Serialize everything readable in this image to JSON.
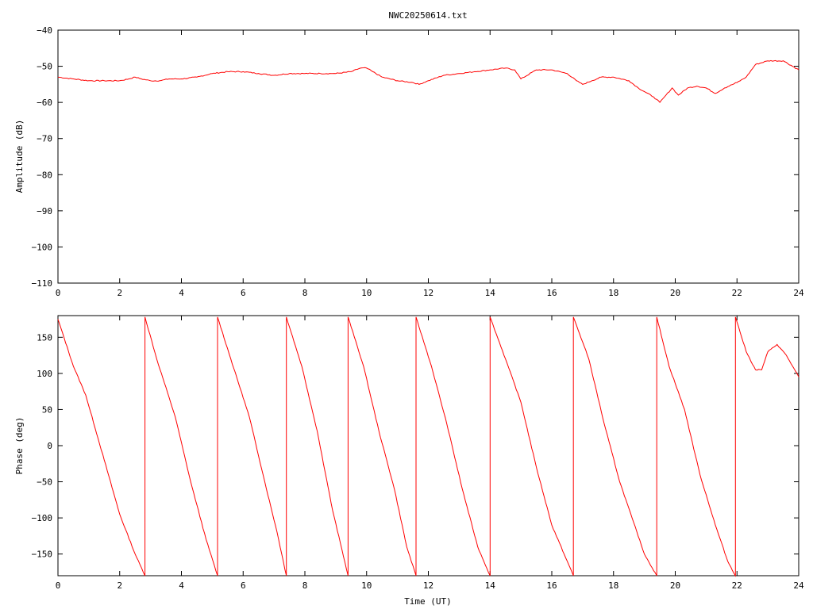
{
  "title": "NWC20250614.txt",
  "colors": {
    "trace": "#ff0000",
    "axis": "#000000",
    "background": "#ffffff"
  },
  "chart_data": [
    {
      "type": "line",
      "title": "NWC20250614.txt",
      "xlabel": "",
      "ylabel": "Amplitude (dB)",
      "xlim": [
        0,
        24
      ],
      "ylim": [
        -110,
        -40
      ],
      "xticks": [
        0,
        2,
        4,
        6,
        8,
        10,
        12,
        14,
        16,
        18,
        20,
        22,
        24
      ],
      "yticks": [
        -40,
        -50,
        -60,
        -70,
        -80,
        -90,
        -100,
        -110
      ],
      "grid": false,
      "series": [
        {
          "color": "#ff0000",
          "x": [
            0,
            0.5,
            1,
            1.5,
            2,
            2.3,
            2.5,
            2.7,
            3,
            3.3,
            3.6,
            4,
            4.5,
            5,
            5.5,
            6,
            6.5,
            7,
            7.5,
            8,
            8.5,
            9,
            9.5,
            9.8,
            10,
            10.2,
            10.5,
            11,
            11.5,
            11.7,
            12,
            12.5,
            13,
            13.5,
            14,
            14.5,
            14.8,
            15,
            15.5,
            16,
            16.5,
            16.8,
            17,
            17.3,
            17.6,
            18,
            18.5,
            18.8,
            19,
            19.3,
            19.5,
            19.7,
            19.9,
            20.1,
            20.4,
            20.7,
            21,
            21.3,
            21.6,
            22,
            22.3,
            22.6,
            23,
            23.5,
            24
          ],
          "y": [
            -53,
            -53.5,
            -54,
            -54,
            -54,
            -53.5,
            -53,
            -53.5,
            -54,
            -54,
            -53.5,
            -53.5,
            -53,
            -52,
            -51.5,
            -51.5,
            -52,
            -52.5,
            -52,
            -52,
            -52,
            -52,
            -51.5,
            -50.5,
            -50.5,
            -51.5,
            -53,
            -54,
            -54.5,
            -55,
            -54,
            -52.5,
            -52,
            -51.5,
            -51,
            -50.5,
            -51,
            -53.5,
            -51,
            -51,
            -52,
            -54,
            -55,
            -54,
            -53,
            -53,
            -54,
            -56,
            -57,
            -58.5,
            -60,
            -58,
            -56,
            -58,
            -56,
            -55.5,
            -56,
            -57.5,
            -56,
            -54.5,
            -53,
            -49.5,
            -48.5,
            -48.5,
            -51
          ]
        }
      ]
    },
    {
      "type": "line",
      "title": "",
      "xlabel": "Time (UT)",
      "ylabel": "Phase (deg)",
      "xlim": [
        0,
        24
      ],
      "ylim": [
        -180,
        180
      ],
      "xticks": [
        0,
        2,
        4,
        6,
        8,
        10,
        12,
        14,
        16,
        18,
        20,
        22,
        24
      ],
      "yticks": [
        150,
        100,
        50,
        0,
        -50,
        -100,
        -150
      ],
      "grid": false,
      "series": [
        {
          "color": "#ff0000",
          "x": [
            0,
            0.5,
            0.9,
            1.5,
            2.0,
            2.5,
            2.82,
            2.82,
            3.2,
            3.8,
            4.3,
            4.8,
            5.17,
            5.17,
            5.6,
            6.2,
            6.7,
            7.1,
            7.4,
            7.4,
            7.9,
            8.4,
            8.9,
            9.4,
            9.4,
            9.9,
            10.4,
            10.9,
            11.3,
            11.6,
            11.6,
            12.1,
            12.6,
            13.1,
            13.6,
            14.0,
            14.0,
            14.5,
            15.0,
            15.5,
            16.0,
            16.4,
            16.7,
            16.7,
            17.2,
            17.7,
            18.2,
            18.6,
            19.0,
            19.4,
            19.4,
            19.8,
            20.3,
            20.8,
            21.3,
            21.7,
            21.95,
            21.95,
            22.3,
            22.6,
            22.8,
            23.0,
            23.3,
            23.6,
            24.0
          ],
          "y": [
            175,
            110,
            70,
            -20,
            -95,
            -150,
            -180,
            178,
            120,
            40,
            -50,
            -130,
            -180,
            178,
            120,
            40,
            -50,
            -120,
            -180,
            178,
            110,
            20,
            -90,
            -180,
            178,
            110,
            20,
            -60,
            -140,
            -180,
            178,
            110,
            30,
            -60,
            -140,
            -180,
            178,
            120,
            60,
            -30,
            -110,
            -150,
            -180,
            178,
            120,
            30,
            -50,
            -100,
            -150,
            -180,
            178,
            110,
            50,
            -40,
            -110,
            -160,
            -180,
            178,
            130,
            105,
            105,
            130,
            140,
            125,
            95
          ]
        }
      ]
    }
  ]
}
